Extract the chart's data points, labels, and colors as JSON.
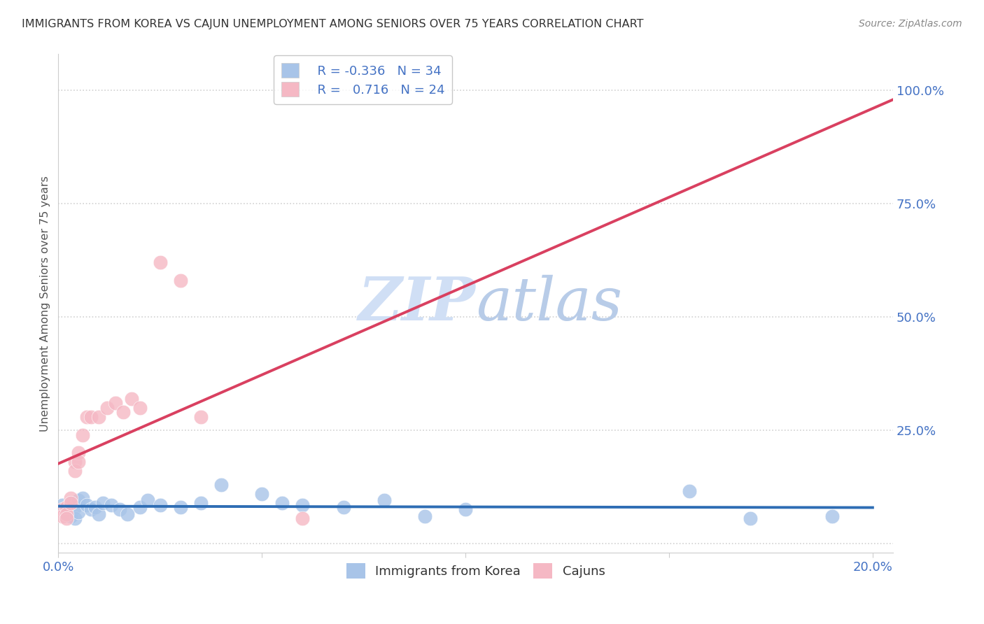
{
  "title": "IMMIGRANTS FROM KOREA VS CAJUN UNEMPLOYMENT AMONG SENIORS OVER 75 YEARS CORRELATION CHART",
  "source": "Source: ZipAtlas.com",
  "ylabel": "Unemployment Among Seniors over 75 years",
  "korea_R": -0.336,
  "korea_N": 34,
  "cajun_R": 0.716,
  "cajun_N": 24,
  "korea_color": "#a8c4e8",
  "cajun_color": "#f5b8c4",
  "korea_line_color": "#2e6db4",
  "cajun_line_color": "#d94060",
  "watermark_color": "#d0dff5",
  "background_color": "#ffffff",
  "grid_color": "#cccccc",
  "korea_x": [
    0.001,
    0.002,
    0.002,
    0.003,
    0.003,
    0.004,
    0.004,
    0.005,
    0.005,
    0.006,
    0.007,
    0.008,
    0.009,
    0.01,
    0.011,
    0.013,
    0.015,
    0.017,
    0.02,
    0.022,
    0.025,
    0.03,
    0.035,
    0.04,
    0.05,
    0.055,
    0.06,
    0.07,
    0.08,
    0.09,
    0.1,
    0.155,
    0.17,
    0.19
  ],
  "korea_y": [
    0.085,
    0.075,
    0.065,
    0.09,
    0.06,
    0.08,
    0.055,
    0.095,
    0.07,
    0.1,
    0.085,
    0.075,
    0.08,
    0.065,
    0.09,
    0.085,
    0.075,
    0.065,
    0.08,
    0.095,
    0.085,
    0.08,
    0.09,
    0.13,
    0.11,
    0.09,
    0.085,
    0.08,
    0.095,
    0.06,
    0.075,
    0.115,
    0.055,
    0.06
  ],
  "cajun_x": [
    0.001,
    0.001,
    0.002,
    0.002,
    0.002,
    0.003,
    0.003,
    0.004,
    0.004,
    0.005,
    0.005,
    0.006,
    0.007,
    0.008,
    0.01,
    0.012,
    0.014,
    0.016,
    0.018,
    0.02,
    0.025,
    0.03,
    0.035,
    0.06
  ],
  "cajun_y": [
    0.075,
    0.06,
    0.08,
    0.065,
    0.055,
    0.1,
    0.09,
    0.18,
    0.16,
    0.2,
    0.18,
    0.24,
    0.28,
    0.28,
    0.28,
    0.3,
    0.31,
    0.29,
    0.32,
    0.3,
    0.62,
    0.58,
    0.28,
    0.055
  ],
  "xlim_min": 0.0,
  "xlim_max": 0.205,
  "ylim_min": -0.02,
  "ylim_max": 1.08
}
